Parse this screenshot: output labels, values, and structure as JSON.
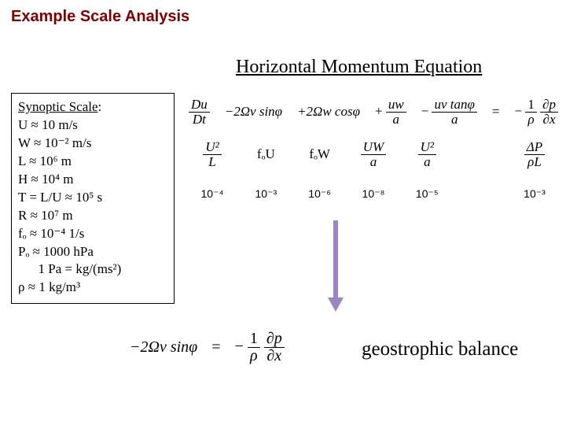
{
  "title": "Example Scale Analysis",
  "header": "Horizontal Momentum Equation",
  "synoptic": {
    "heading": "Synoptic Scale",
    "lines": {
      "U": "U  ≈ 10 m/s",
      "W": "W ≈ 10⁻²  m/s",
      "L": "L  ≈ 10⁶  m",
      "H": "H ≈ 10⁴  m",
      "T": "T = L/U ≈ 10⁵ s",
      "R": "R ≈ 10⁷  m",
      "f": "fₒ ≈ 10⁻⁴ 1/s",
      "P": "Pₒ ≈ 1000 hPa",
      "Pa": "      1 Pa = kg/(ms²)",
      "rho": "ρ ≈ 1  kg/m³"
    }
  },
  "equation_terms": {
    "t1_num": "Du",
    "t1_den": "Dt",
    "t2": "−2Ωv sinφ",
    "t3": "+2Ωw cosφ",
    "t4_num": "uw",
    "t4_den": "a",
    "t4_sign": "+",
    "t5_num": "uv tanφ",
    "t5_den": "a",
    "t5_sign": "−",
    "eq": "=",
    "t6_sign": "−",
    "t6_outer_num": "1",
    "t6_outer_den": "ρ",
    "t6_num": "∂p",
    "t6_den": "∂x"
  },
  "scale_terms": {
    "s1_num": "U²",
    "s1_den": "L",
    "s2": "fₒU",
    "s3": "fₒW",
    "s4_num": "UW",
    "s4_den": "a",
    "s5_num": "U²",
    "s5_den": "a",
    "s6_num": "ΔP",
    "s6_den": "ρL"
  },
  "magnitudes": {
    "m1": "10⁻⁴",
    "m2": "10⁻³",
    "m3": "10⁻⁶",
    "m4": "10⁻⁸",
    "m5": "10⁻⁵",
    "m6": "10⁻³"
  },
  "geo_eq": {
    "lhs": "−2Ωv sinφ",
    "eq": "=",
    "rhs_sign": "−",
    "rhs_o_num": "1",
    "rhs_o_den": "ρ",
    "rhs_num": "∂p",
    "rhs_den": "∂x"
  },
  "geo_label": "geostrophic balance",
  "colors": {
    "title": "#800000",
    "arrow": "#9a86c4",
    "text": "#000000",
    "bg": "#ffffff"
  },
  "fontsizes": {
    "title_pt": 20,
    "header_pt": 24,
    "body_pt": 17,
    "mag_pt": 14,
    "geo_label_pt": 25
  }
}
